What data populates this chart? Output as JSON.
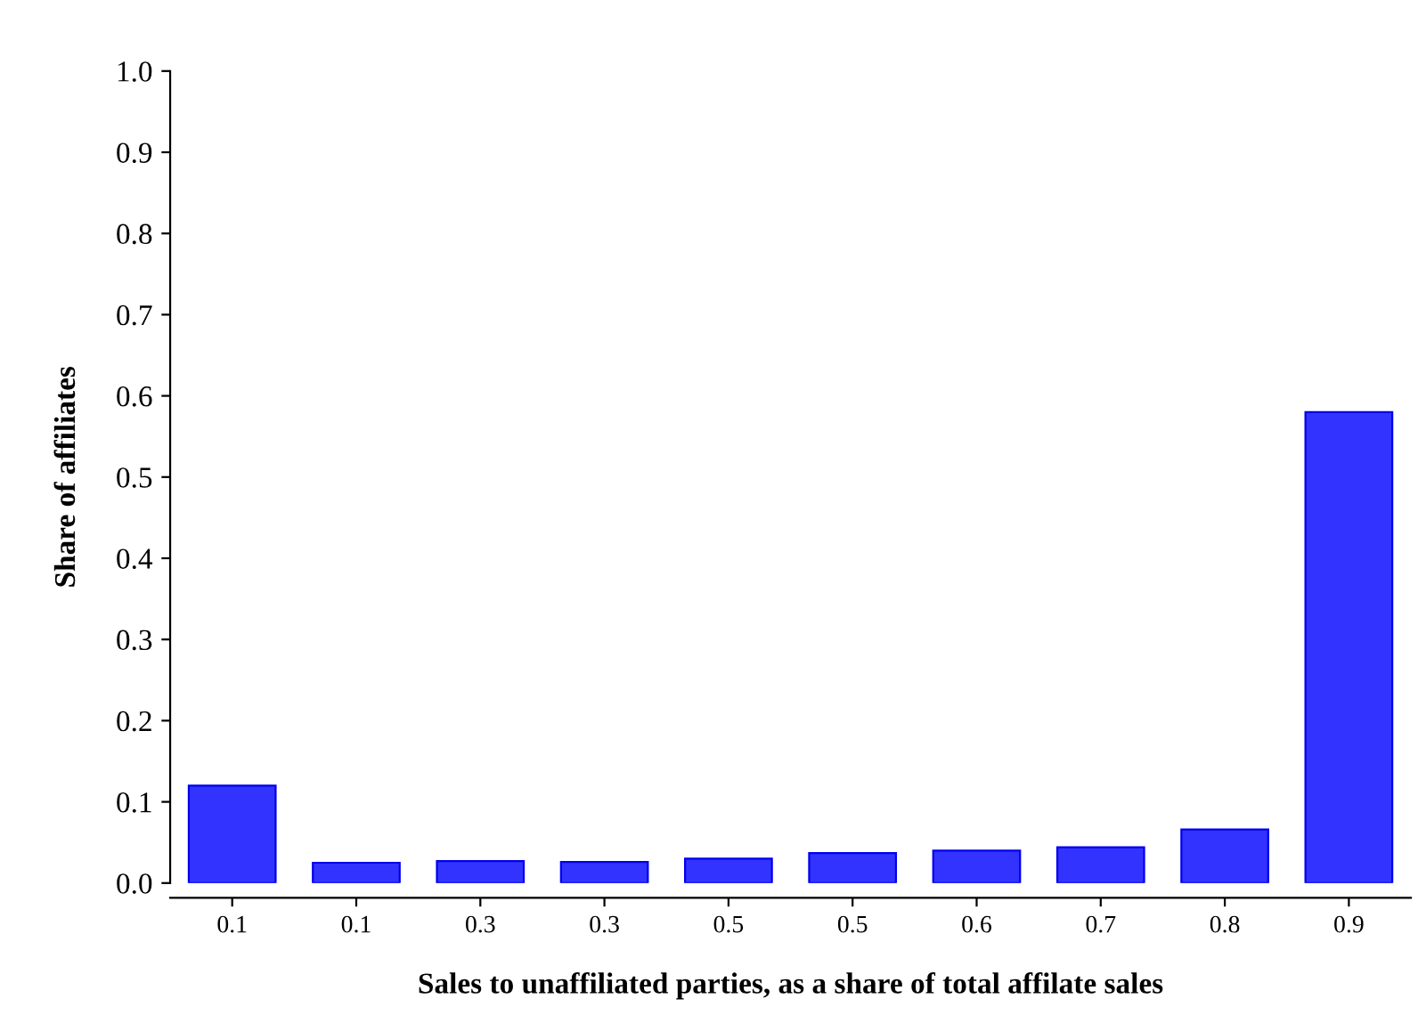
{
  "chart_data": {
    "type": "bar",
    "xlabel": "Sales to unaffiliated parties, as a share of total affilate sales",
    "ylabel": "Share of affiliates",
    "categories": [
      "0.1",
      "0.1",
      "0.3",
      "0.3",
      "0.5",
      "0.5",
      "0.6",
      "0.7",
      "0.8",
      "0.9"
    ],
    "values": [
      0.12,
      0.025,
      0.027,
      0.026,
      0.03,
      0.037,
      0.04,
      0.044,
      0.066,
      0.58
    ],
    "color": "#3333ff",
    "ylim": [
      0,
      1.0
    ],
    "yticks": [
      {
        "value": 0,
        "label": "0.0"
      },
      0.1,
      0.2,
      0.3,
      0.4,
      0.5,
      0.6,
      0.7,
      0.8,
      0.9,
      {
        "value": 1,
        "label": "1.0"
      }
    ],
    "grid": false
  }
}
